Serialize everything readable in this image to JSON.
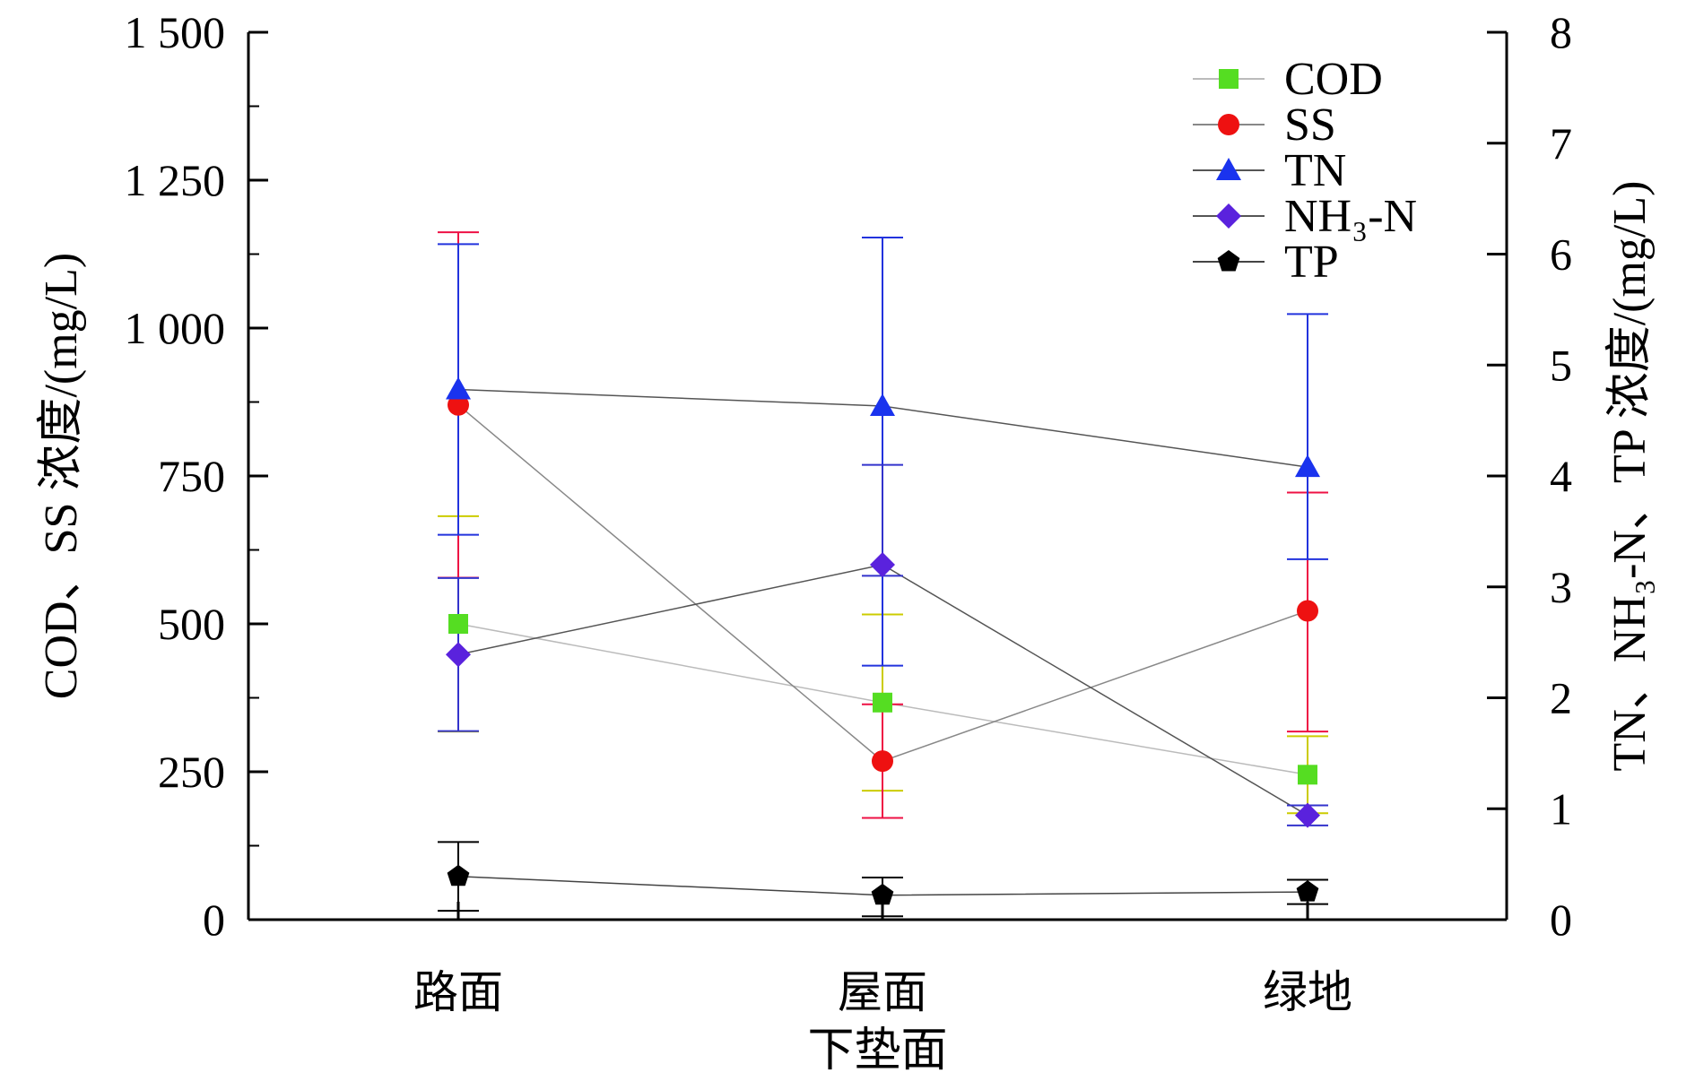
{
  "chart_data": {
    "type": "line",
    "categories": [
      "路面",
      "屋面",
      "绿地"
    ],
    "xlabel": "下垫面",
    "ylabel_left": "COD、SS 浓度/(mg/L)",
    "ylabel_right": "TN、NH₃-N、TP 浓度/(mg/L)",
    "ylim_left": [
      0,
      1500
    ],
    "ylim_right": [
      0,
      8
    ],
    "yticks_left": [
      "0",
      "250",
      "500",
      "750",
      "1 000",
      "1 250",
      "1 500"
    ],
    "yticks_right": [
      "0",
      "1",
      "2",
      "3",
      "4",
      "5",
      "6",
      "7",
      "8"
    ],
    "grid": false,
    "legend_position": "top-right",
    "series": [
      {
        "name": "COD",
        "axis": "left",
        "marker": "square",
        "color": "#55dd22",
        "line_color": "#bbbbbb",
        "error_color": "#cccc00",
        "values": [
          500,
          367,
          245
        ],
        "err_low": [
          318,
          218,
          180
        ],
        "err_high": [
          682,
          516,
          310
        ]
      },
      {
        "name": "SS",
        "axis": "left",
        "marker": "circle",
        "color": "#ee1111",
        "line_color": "#888888",
        "error_color": "#ee1144",
        "values": [
          870,
          268,
          522
        ],
        "err_low": [
          578,
          172,
          318
        ],
        "err_high": [
          1162,
          364,
          722
        ]
      },
      {
        "name": "TN",
        "axis": "right",
        "marker": "triangle",
        "color": "#1a33ee",
        "line_color": "#555555",
        "error_color": "#2233dd",
        "values": [
          4.78,
          4.63,
          4.08
        ],
        "err_low": [
          3.47,
          2.29,
          3.25
        ],
        "err_high": [
          6.09,
          6.15,
          5.46
        ]
      },
      {
        "name": "NH₃-N",
        "axis": "right",
        "marker": "diamond",
        "color": "#5a22dd",
        "line_color": "#555555",
        "error_color": "#3333cc",
        "values": [
          2.39,
          3.2,
          0.94
        ],
        "err_low": [
          1.7,
          3.1,
          0.85
        ],
        "err_high": [
          3.08,
          4.1,
          1.03
        ]
      },
      {
        "name": "TP",
        "axis": "right",
        "marker": "pentagon",
        "color": "#000000",
        "line_color": "#444444",
        "error_color": "#000000",
        "values": [
          0.39,
          0.22,
          0.25
        ],
        "err_low": [
          0.08,
          0.03,
          0.14
        ],
        "err_high": [
          0.7,
          0.38,
          0.36
        ]
      }
    ]
  }
}
